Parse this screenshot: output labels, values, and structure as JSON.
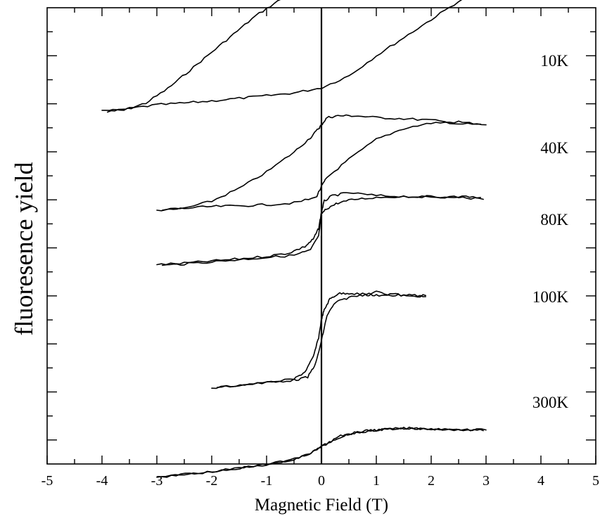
{
  "chart_data": {
    "type": "line",
    "title": "",
    "xlabel": "Magnetic Field (T)",
    "ylabel": "fluoresence yield",
    "xlim": [
      -5,
      5
    ],
    "ylim": [
      0,
      12
    ],
    "x_ticks": [
      "-5",
      "-4",
      "-3",
      "-2",
      "-1",
      "0",
      "1",
      "2",
      "3",
      "4",
      "5"
    ],
    "vertical_line_at_x": 0,
    "grid": false,
    "legend": "none",
    "colors": {
      "line": "#000000",
      "background": "#ffffff"
    },
    "series": [
      {
        "name": "10K",
        "branches": [
          {
            "x": [
              -4.0,
              -3.6,
              -3.2,
              -2.8,
              -2.4,
              -2.0,
              -1.6,
              -1.2,
              -0.8,
              -0.4,
              -0.1,
              0.0,
              0.2,
              0.5,
              1.0,
              1.5,
              2.0,
              2.5,
              3.0,
              3.5,
              3.9
            ],
            "y": [
              9.35,
              9.35,
              9.55,
              9.95,
              10.45,
              10.95,
              11.45,
              11.95,
              12.35,
              12.75,
              12.95,
              12.98,
              12.98,
              12.99,
              12.95,
              12.9,
              12.87,
              12.83,
              12.79,
              12.77,
              12.77
            ]
          },
          {
            "x": [
              -3.9,
              -3.5,
              -3.0,
              -2.5,
              -2.0,
              -1.5,
              -1.0,
              -0.5,
              0.0,
              0.5,
              1.0,
              1.5,
              2.0,
              2.5,
              3.0,
              3.3,
              3.6,
              4.0
            ],
            "y": [
              9.3,
              9.4,
              9.5,
              9.55,
              9.61,
              9.68,
              9.75,
              9.83,
              9.97,
              10.3,
              10.85,
              11.35,
              11.85,
              12.35,
              12.65,
              12.78,
              12.8,
              12.75
            ]
          }
        ]
      },
      {
        "name": "40K",
        "branches": [
          {
            "x": [
              -3.0,
              -2.5,
              -2.0,
              -1.5,
              -1.0,
              -0.5,
              -0.2,
              -0.05,
              0.0,
              0.1,
              0.3,
              0.6,
              1.0,
              1.5,
              2.0,
              2.5,
              3.0
            ],
            "y": [
              6.6,
              6.65,
              6.85,
              7.2,
              7.65,
              8.2,
              8.6,
              8.85,
              8.95,
              9.15,
              9.2,
              9.2,
              9.15,
              9.12,
              9.08,
              8.98,
              8.95
            ]
          },
          {
            "x": [
              -2.9,
              -2.5,
              -2.0,
              -1.5,
              -1.0,
              -0.5,
              -0.1,
              0.0,
              0.1,
              0.5,
              1.0,
              1.5,
              2.0,
              2.5,
              2.9
            ],
            "y": [
              6.6,
              6.65,
              6.7,
              6.72,
              6.75,
              6.8,
              6.95,
              7.25,
              7.5,
              8.0,
              8.55,
              8.85,
              9.0,
              9.03,
              8.97
            ]
          }
        ]
      },
      {
        "name": "80K",
        "branches": [
          {
            "x": [
              -3.0,
              -2.5,
              -2.0,
              -1.5,
              -1.0,
              -0.6,
              -0.3,
              -0.15,
              -0.05,
              0.0,
              0.05,
              0.2,
              0.5,
              1.0,
              1.5,
              2.0,
              2.5,
              2.9
            ],
            "y": [
              5.1,
              5.14,
              5.2,
              5.26,
              5.33,
              5.42,
              5.6,
              5.8,
              6.1,
              6.55,
              6.85,
              7.0,
              7.08,
              7.0,
              6.98,
              6.95,
              6.98,
              6.95
            ]
          },
          {
            "x": [
              -2.9,
              -2.5,
              -2.0,
              -1.5,
              -1.0,
              -0.5,
              -0.2,
              -0.05,
              0.0,
              0.1,
              0.3,
              0.6,
              1.0,
              1.5,
              2.0,
              2.5,
              2.95
            ],
            "y": [
              5.08,
              5.12,
              5.18,
              5.24,
              5.3,
              5.36,
              5.5,
              5.9,
              6.5,
              6.65,
              6.8,
              6.9,
              6.95,
              6.98,
              6.97,
              6.96,
              6.9
            ]
          }
        ]
      },
      {
        "name": "100K",
        "branches": [
          {
            "x": [
              -2.0,
              -1.5,
              -1.0,
              -0.5,
              -0.3,
              -0.15,
              -0.05,
              0.0,
              0.05,
              0.15,
              0.3,
              0.5,
              0.8,
              1.0,
              1.3,
              1.6,
              1.9
            ],
            "y": [
              1.7,
              1.78,
              1.85,
              1.95,
              2.15,
              2.55,
              3.1,
              3.6,
              3.85,
              4.15,
              4.3,
              4.32,
              4.28,
              4.35,
              4.25,
              4.28,
              4.22
            ]
          },
          {
            "x": [
              -1.9,
              -1.4,
              -0.9,
              -0.5,
              -0.25,
              -0.1,
              0.0,
              0.1,
              0.25,
              0.5,
              0.8,
              1.0,
              1.3,
              1.6,
              1.9
            ],
            "y": [
              1.72,
              1.8,
              1.87,
              1.92,
              2.0,
              2.4,
              3.0,
              3.7,
              4.05,
              4.2,
              4.28,
              4.25,
              4.3,
              4.22,
              4.25
            ]
          }
        ]
      },
      {
        "name": "300K",
        "branches": [
          {
            "x": [
              -3.0,
              -2.5,
              -2.0,
              -1.5,
              -1.0,
              -0.5,
              -0.25,
              0.0,
              0.25,
              0.5,
              0.8,
              1.0,
              1.3,
              1.6,
              2.0,
              2.5,
              3.0
            ],
            "y": [
              -0.75,
              -0.68,
              -0.6,
              -0.5,
              -0.4,
              -0.26,
              -0.12,
              0.08,
              0.3,
              0.44,
              0.52,
              0.55,
              0.58,
              0.6,
              0.58,
              0.56,
              0.55
            ]
          },
          {
            "x": [
              -2.9,
              -2.4,
              -1.9,
              -1.4,
              -0.9,
              -0.4,
              -0.15,
              0.1,
              0.35,
              0.6,
              0.9,
              1.2,
              1.5,
              1.8,
              2.2,
              2.6,
              2.95
            ],
            "y": [
              -0.74,
              -0.66,
              -0.58,
              -0.48,
              -0.38,
              -0.22,
              -0.05,
              0.18,
              0.38,
              0.47,
              0.53,
              0.57,
              0.59,
              0.58,
              0.57,
              0.56,
              0.53
            ]
          }
        ]
      }
    ]
  }
}
